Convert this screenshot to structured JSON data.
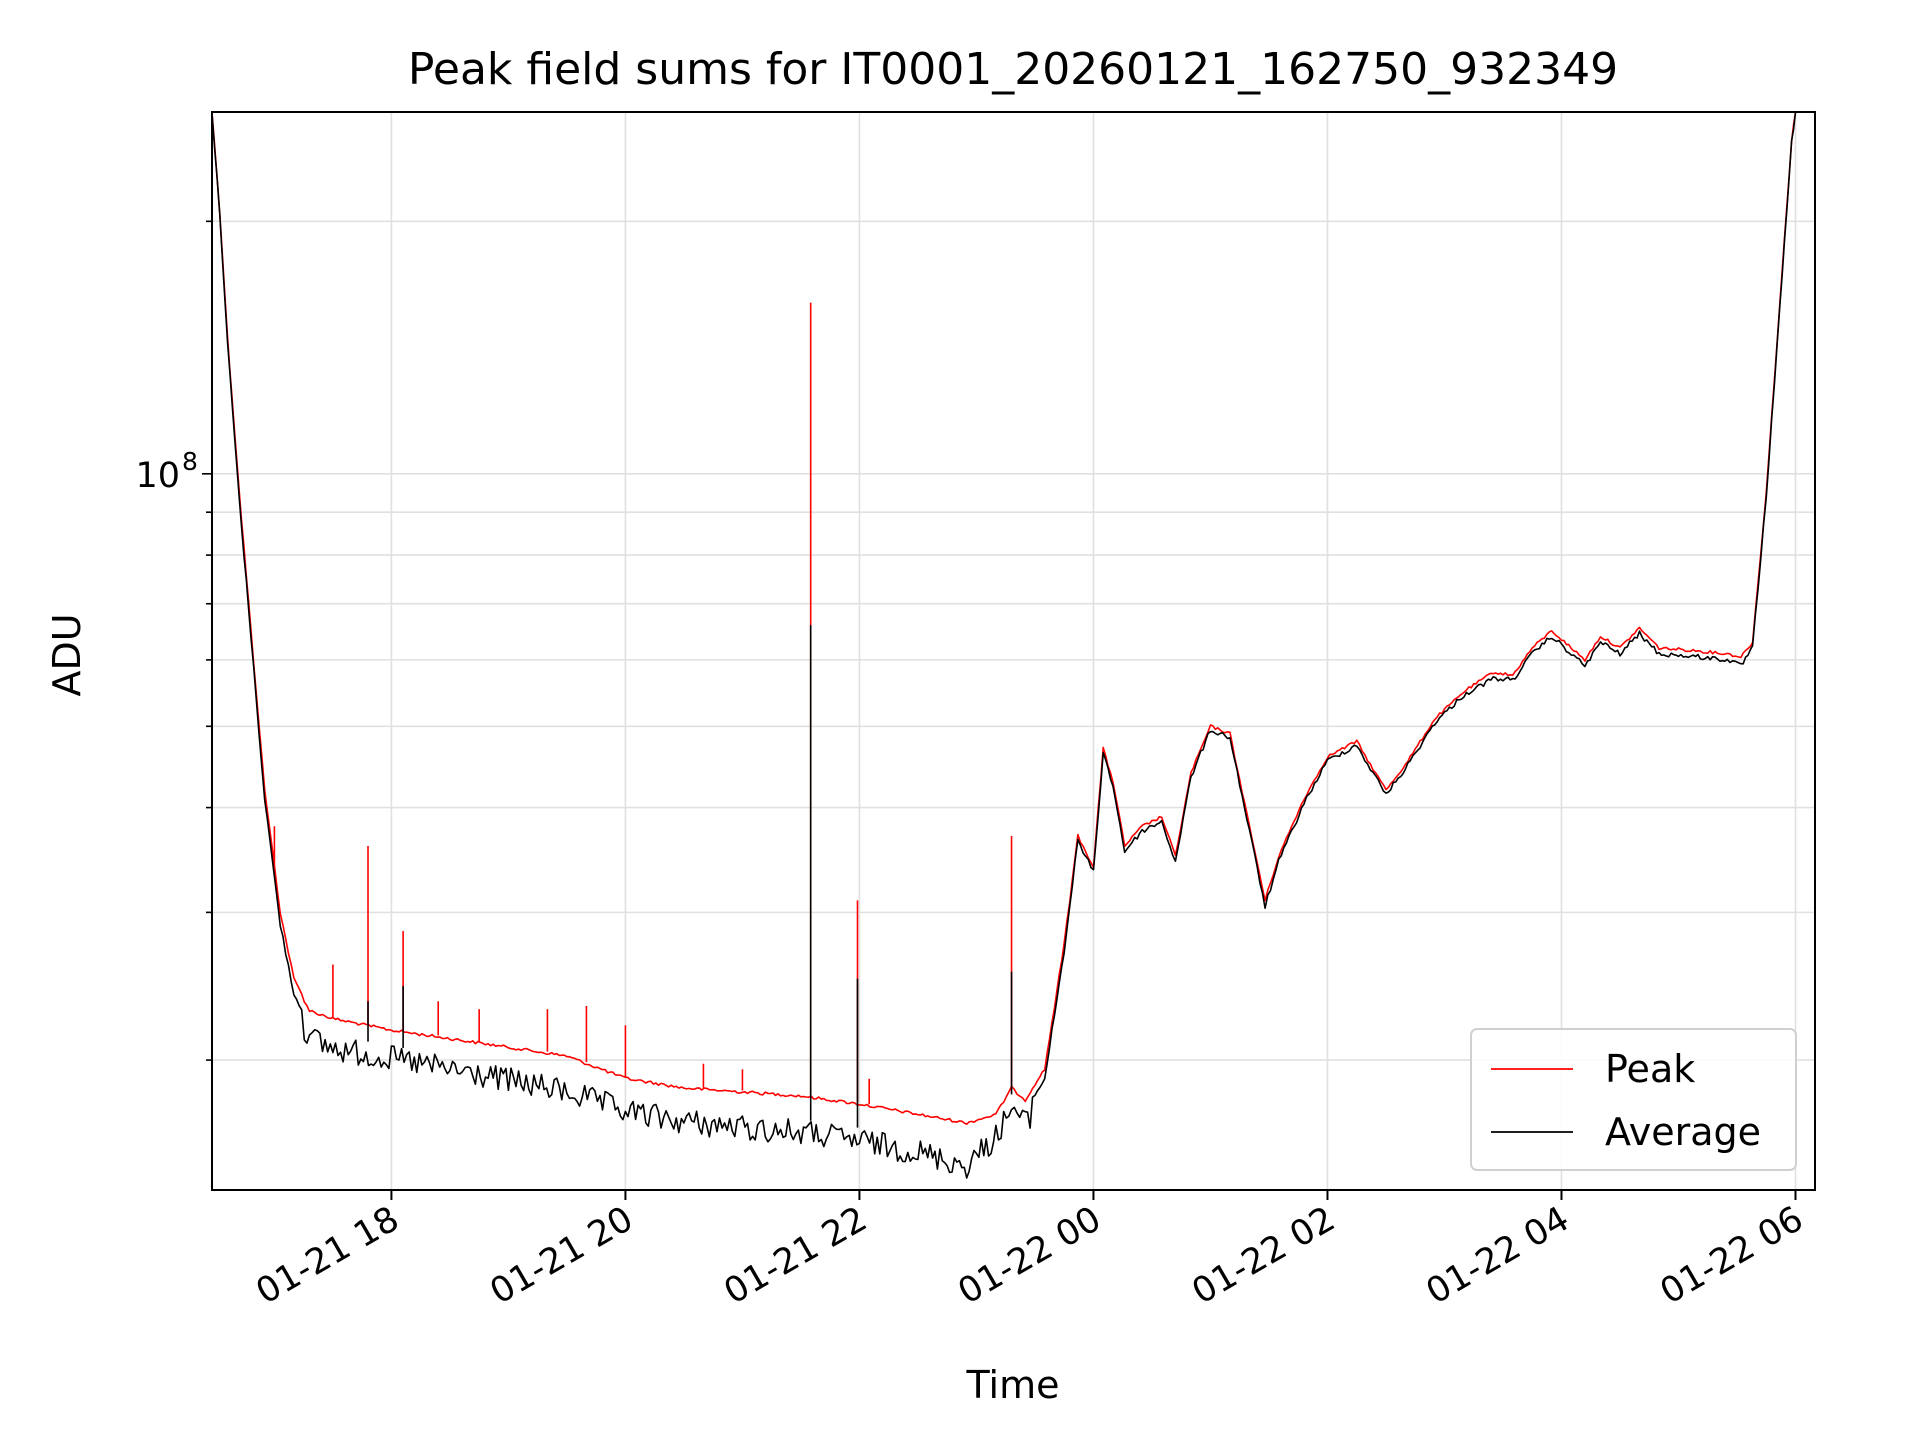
{
  "chart_data": {
    "type": "line",
    "title": "Peak field sums for IT0001_20260121_162750_932349",
    "xlabel": "Time",
    "ylabel": "ADU",
    "yscale": "log",
    "grid": true,
    "legend_position": "lower-right",
    "x_ticks": [
      "01-21 18",
      "01-21 20",
      "01-21 22",
      "01-22 00",
      "01-22 02",
      "01-22 04",
      "01-22 06"
    ],
    "y_tick_labels": [
      {
        "mantissa": "10",
        "exponent": "8"
      }
    ],
    "xlim": [
      "2026-01-21 16:28",
      "2026-01-22 06:10"
    ],
    "ylim": [
      14000000,
      270000000
    ],
    "series": [
      {
        "name": "Peak",
        "color": "#ff0000",
        "points": [
          [
            "2026-01-21 16:28",
            270000000
          ],
          [
            "2026-01-21 16:32",
            205000000
          ],
          [
            "2026-01-21 16:36",
            145000000
          ],
          [
            "2026-01-21 16:42",
            95000000
          ],
          [
            "2026-01-21 16:48",
            65000000
          ],
          [
            "2026-01-21 16:55",
            42000000
          ],
          [
            "2026-01-21 17:03",
            30000000
          ],
          [
            "2026-01-21 17:10",
            25000000
          ],
          [
            "2026-01-21 17:18",
            23000000
          ],
          [
            "2026-01-21 17:30",
            22500000
          ],
          [
            "2026-01-21 18:00",
            21800000
          ],
          [
            "2026-01-21 18:30",
            21300000
          ],
          [
            "2026-01-21 19:00",
            20800000
          ],
          [
            "2026-01-21 19:30",
            20300000
          ],
          [
            "2026-01-21 20:00",
            19100000
          ],
          [
            "2026-01-21 20:30",
            18600000
          ],
          [
            "2026-01-21 21:00",
            18400000
          ],
          [
            "2026-01-21 21:30",
            18200000
          ],
          [
            "2026-01-21 22:00",
            17800000
          ],
          [
            "2026-01-21 22:30",
            17300000
          ],
          [
            "2026-01-21 22:55",
            16900000
          ],
          [
            "2026-01-21 23:10",
            17300000
          ],
          [
            "2026-01-21 23:18",
            18600000
          ],
          [
            "2026-01-21 23:25",
            18000000
          ],
          [
            "2026-01-21 23:35",
            19500000
          ],
          [
            "2026-01-21 23:45",
            27500000
          ],
          [
            "2026-01-21 23:52",
            37000000
          ],
          [
            "2026-01-22 00:00",
            34000000
          ],
          [
            "2026-01-22 00:05",
            47000000
          ],
          [
            "2026-01-22 00:10",
            43000000
          ],
          [
            "2026-01-22 00:16",
            36000000
          ],
          [
            "2026-01-22 00:25",
            38000000
          ],
          [
            "2026-01-22 00:35",
            39000000
          ],
          [
            "2026-01-22 00:42",
            35000000
          ],
          [
            "2026-01-22 00:50",
            44000000
          ],
          [
            "2026-01-22 01:00",
            50000000
          ],
          [
            "2026-01-22 01:10",
            49000000
          ],
          [
            "2026-01-22 01:20",
            38000000
          ],
          [
            "2026-01-22 01:28",
            31000000
          ],
          [
            "2026-01-22 01:35",
            35000000
          ],
          [
            "2026-01-22 01:48",
            41000000
          ],
          [
            "2026-01-22 02:00",
            46000000
          ],
          [
            "2026-01-22 02:15",
            48000000
          ],
          [
            "2026-01-22 02:22",
            45000000
          ],
          [
            "2026-01-22 02:30",
            42000000
          ],
          [
            "2026-01-22 02:40",
            45000000
          ],
          [
            "2026-01-22 02:55",
            51000000
          ],
          [
            "2026-01-22 03:10",
            55000000
          ],
          [
            "2026-01-22 03:25",
            58000000
          ],
          [
            "2026-01-22 03:35",
            57500000
          ],
          [
            "2026-01-22 03:45",
            62000000
          ],
          [
            "2026-01-22 03:55",
            65000000
          ],
          [
            "2026-01-22 04:05",
            62000000
          ],
          [
            "2026-01-22 04:12",
            60000000
          ],
          [
            "2026-01-22 04:20",
            64000000
          ],
          [
            "2026-01-22 04:30",
            62000000
          ],
          [
            "2026-01-22 04:40",
            65500000
          ],
          [
            "2026-01-22 04:50",
            62000000
          ],
          [
            "2026-01-22 05:10",
            61500000
          ],
          [
            "2026-01-22 05:25",
            61000000
          ],
          [
            "2026-01-22 05:32",
            60500000
          ],
          [
            "2026-01-22 05:38",
            63000000
          ],
          [
            "2026-01-22 05:45",
            95000000
          ],
          [
            "2026-01-22 05:52",
            160000000
          ],
          [
            "2026-01-22 05:58",
            250000000
          ],
          [
            "2026-01-22 06:00",
            270000000
          ]
        ],
        "spikes": [
          [
            "2026-01-21 17:00",
            38000000
          ],
          [
            "2026-01-21 17:30",
            26000000
          ],
          [
            "2026-01-21 17:48",
            36000000
          ],
          [
            "2026-01-21 18:06",
            28500000
          ],
          [
            "2026-01-21 18:24",
            23500000
          ],
          [
            "2026-01-21 18:45",
            23000000
          ],
          [
            "2026-01-21 19:20",
            23000000
          ],
          [
            "2026-01-21 19:40",
            23200000
          ],
          [
            "2026-01-21 20:00",
            22000000
          ],
          [
            "2026-01-21 20:40",
            19800000
          ],
          [
            "2026-01-21 21:00",
            19500000
          ],
          [
            "2026-01-21 21:35",
            160000000
          ],
          [
            "2026-01-21 21:59",
            31000000
          ],
          [
            "2026-01-21 22:05",
            19000000
          ],
          [
            "2026-01-21 23:18",
            37000000
          ]
        ]
      },
      {
        "name": "Average",
        "color": "#000000",
        "points": [
          [
            "2026-01-21 16:28",
            270000000
          ],
          [
            "2026-01-21 16:32",
            203000000
          ],
          [
            "2026-01-21 16:36",
            143000000
          ],
          [
            "2026-01-21 16:42",
            93000000
          ],
          [
            "2026-01-21 16:48",
            64000000
          ],
          [
            "2026-01-21 16:55",
            41000000
          ],
          [
            "2026-01-21 17:03",
            29000000
          ],
          [
            "2026-01-21 17:10",
            24000000
          ],
          [
            "2026-01-21 17:18",
            22000000
          ],
          [
            "2026-01-21 17:30",
            21400000
          ],
          [
            "2026-01-21 18:00",
            20800000
          ],
          [
            "2026-01-21 18:30",
            20200000
          ],
          [
            "2026-01-21 19:00",
            19600000
          ],
          [
            "2026-01-21 19:30",
            19000000
          ],
          [
            "2026-01-21 20:00",
            18000000
          ],
          [
            "2026-01-21 20:30",
            17500000
          ],
          [
            "2026-01-21 21:00",
            17200000
          ],
          [
            "2026-01-21 21:30",
            17000000
          ],
          [
            "2026-01-21 22:00",
            16600000
          ],
          [
            "2026-01-21 22:30",
            16100000
          ],
          [
            "2026-01-21 22:55",
            15500000
          ],
          [
            "2026-01-21 23:10",
            16800000
          ],
          [
            "2026-01-21 23:18",
            18200000
          ],
          [
            "2026-01-21 23:25",
            17400000
          ],
          [
            "2026-01-21 23:35",
            19000000
          ],
          [
            "2026-01-21 23:45",
            27000000
          ],
          [
            "2026-01-21 23:52",
            36500000
          ],
          [
            "2026-01-22 00:00",
            33500000
          ],
          [
            "2026-01-22 00:05",
            46500000
          ],
          [
            "2026-01-22 00:10",
            42500000
          ],
          [
            "2026-01-22 00:16",
            35500000
          ],
          [
            "2026-01-22 00:25",
            37500000
          ],
          [
            "2026-01-22 00:35",
            38500000
          ],
          [
            "2026-01-22 00:42",
            34500000
          ],
          [
            "2026-01-22 00:50",
            43500000
          ],
          [
            "2026-01-22 01:00",
            49500000
          ],
          [
            "2026-01-22 01:10",
            48500000
          ],
          [
            "2026-01-22 01:20",
            37500000
          ],
          [
            "2026-01-22 01:28",
            30500000
          ],
          [
            "2026-01-22 01:35",
            34500000
          ],
          [
            "2026-01-22 01:48",
            40500000
          ],
          [
            "2026-01-22 02:00",
            45500000
          ],
          [
            "2026-01-22 02:15",
            47500000
          ],
          [
            "2026-01-22 02:22",
            44500000
          ],
          [
            "2026-01-22 02:30",
            41500000
          ],
          [
            "2026-01-22 02:40",
            44500000
          ],
          [
            "2026-01-22 02:55",
            50500000
          ],
          [
            "2026-01-22 03:10",
            54500000
          ],
          [
            "2026-01-22 03:25",
            57000000
          ],
          [
            "2026-01-22 03:35",
            56800000
          ],
          [
            "2026-01-22 03:45",
            61000000
          ],
          [
            "2026-01-22 03:55",
            64000000
          ],
          [
            "2026-01-22 04:05",
            61000000
          ],
          [
            "2026-01-22 04:12",
            59000000
          ],
          [
            "2026-01-22 04:20",
            63000000
          ],
          [
            "2026-01-22 04:30",
            61000000
          ],
          [
            "2026-01-22 04:40",
            64500000
          ],
          [
            "2026-01-22 04:50",
            61000000
          ],
          [
            "2026-01-22 05:10",
            60500000
          ],
          [
            "2026-01-22 05:25",
            60000000
          ],
          [
            "2026-01-22 05:32",
            59000000
          ],
          [
            "2026-01-22 05:38",
            62000000
          ],
          [
            "2026-01-22 05:45",
            94000000
          ],
          [
            "2026-01-22 05:52",
            158000000
          ],
          [
            "2026-01-22 05:58",
            248000000
          ],
          [
            "2026-01-22 06:00",
            270000000
          ]
        ],
        "spikes": [
          [
            "2026-01-21 17:48",
            23500000
          ],
          [
            "2026-01-21 18:06",
            24500000
          ],
          [
            "2026-01-21 21:35",
            66000000
          ],
          [
            "2026-01-21 21:59",
            25000000
          ],
          [
            "2026-01-21 23:18",
            25500000
          ]
        ]
      }
    ]
  }
}
